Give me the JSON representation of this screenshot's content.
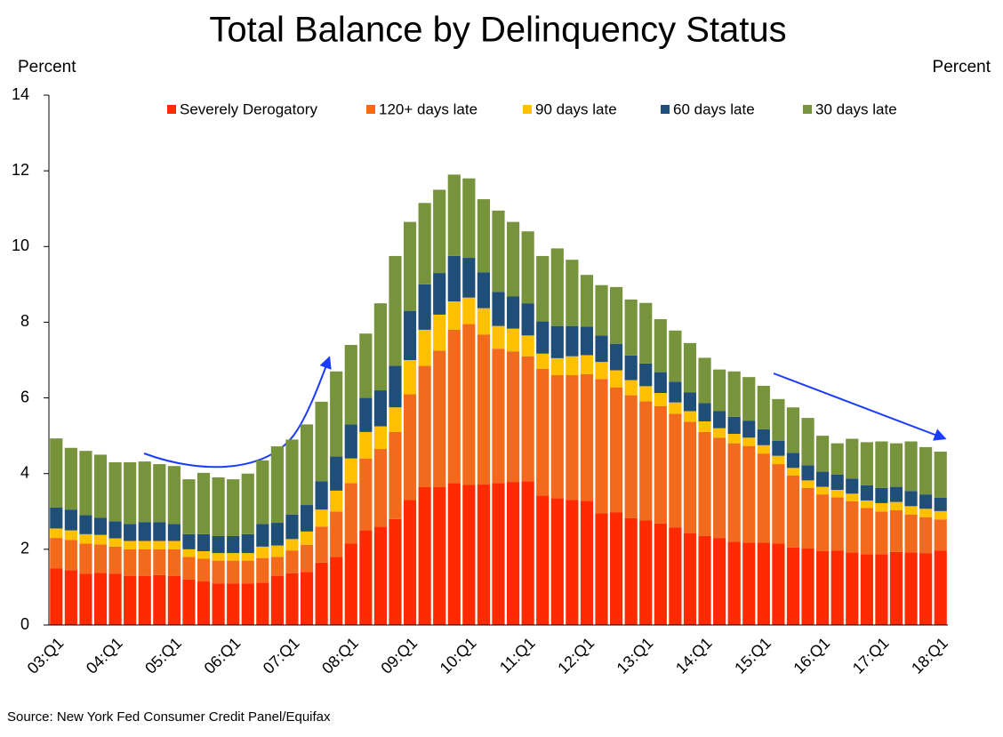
{
  "chart_data": {
    "type": "stacked_bar",
    "title": "Total Balance by Delinquency Status",
    "ylabel": "Percent",
    "ylabel_right": "Percent",
    "source": "Source: New York Fed Consumer Credit Panel/Equifax",
    "categories": [
      "03:Q1",
      null,
      null,
      null,
      "04:Q1",
      null,
      null,
      null,
      "05:Q1",
      null,
      null,
      null,
      "06:Q1",
      null,
      null,
      null,
      "07:Q1",
      null,
      null,
      null,
      "08:Q1",
      null,
      null,
      null,
      "09:Q1",
      null,
      null,
      null,
      "10:Q1",
      null,
      null,
      null,
      "11:Q1",
      null,
      null,
      null,
      "12:Q1",
      null,
      null,
      null,
      "13:Q1",
      null,
      null,
      null,
      "14:Q1",
      null,
      null,
      null,
      "15:Q1",
      null,
      null,
      null,
      "16:Q1",
      null,
      null,
      null,
      "17:Q1",
      null,
      null,
      null,
      "18:Q1"
    ],
    "series": [
      {
        "name": "Severely Derogatory",
        "color": "#ff2a00",
        "values": [
          1.5,
          1.45,
          1.35,
          1.38,
          1.35,
          1.3,
          1.3,
          1.32,
          1.3,
          1.2,
          1.15,
          1.1,
          1.1,
          1.1,
          1.12,
          1.3,
          1.37,
          1.4,
          1.65,
          1.8,
          2.15,
          2.5,
          2.6,
          2.8,
          3.3,
          3.65,
          3.65,
          3.75,
          3.7,
          3.72,
          3.75,
          3.78,
          3.8,
          3.42,
          3.35,
          3.3,
          3.28,
          2.95,
          2.98,
          2.82,
          2.76,
          2.68,
          2.58,
          2.42,
          2.35,
          2.3,
          2.2,
          2.18,
          2.18,
          2.15,
          2.05,
          2.02,
          1.95,
          1.97,
          1.92,
          1.87,
          1.87,
          1.93,
          1.92,
          1.9,
          1.97
        ]
      },
      {
        "name": "120+ days late",
        "color": "#f26b1d",
        "values": [
          0.8,
          0.8,
          0.8,
          0.75,
          0.72,
          0.7,
          0.7,
          0.68,
          0.7,
          0.6,
          0.6,
          0.6,
          0.6,
          0.6,
          0.65,
          0.5,
          0.6,
          0.72,
          0.95,
          1.2,
          1.6,
          1.9,
          2.05,
          2.3,
          2.8,
          3.2,
          3.6,
          4.05,
          4.25,
          3.95,
          3.55,
          3.45,
          3.3,
          3.35,
          3.25,
          3.3,
          3.35,
          3.55,
          3.3,
          3.25,
          3.15,
          3.1,
          3.0,
          2.95,
          2.75,
          2.65,
          2.6,
          2.55,
          2.35,
          2.1,
          1.9,
          1.6,
          1.5,
          1.4,
          1.35,
          1.22,
          1.13,
          1.1,
          1.0,
          0.95,
          0.82
        ]
      },
      {
        "name": "90 days late",
        "color": "#ffc000",
        "values": [
          0.25,
          0.25,
          0.25,
          0.25,
          0.22,
          0.22,
          0.22,
          0.22,
          0.22,
          0.2,
          0.2,
          0.2,
          0.2,
          0.2,
          0.3,
          0.3,
          0.3,
          0.35,
          0.45,
          0.55,
          0.65,
          0.7,
          0.6,
          0.65,
          0.9,
          0.95,
          0.95,
          0.75,
          0.7,
          0.7,
          0.6,
          0.6,
          0.55,
          0.4,
          0.45,
          0.5,
          0.5,
          0.45,
          0.45,
          0.4,
          0.4,
          0.35,
          0.3,
          0.28,
          0.28,
          0.25,
          0.25,
          0.22,
          0.22,
          0.22,
          0.2,
          0.2,
          0.2,
          0.2,
          0.2,
          0.2,
          0.22,
          0.22,
          0.22,
          0.22,
          0.22
        ]
      },
      {
        "name": "60 days late",
        "color": "#1f4e79",
        "values": [
          0.55,
          0.55,
          0.5,
          0.45,
          0.45,
          0.45,
          0.5,
          0.5,
          0.45,
          0.4,
          0.45,
          0.45,
          0.45,
          0.5,
          0.6,
          0.6,
          0.65,
          0.7,
          0.75,
          0.9,
          0.9,
          0.9,
          0.95,
          1.1,
          1.3,
          1.2,
          1.1,
          1.2,
          1.05,
          0.95,
          0.9,
          0.85,
          0.85,
          0.85,
          0.85,
          0.8,
          0.75,
          0.7,
          0.7,
          0.65,
          0.6,
          0.55,
          0.55,
          0.5,
          0.48,
          0.45,
          0.45,
          0.45,
          0.42,
          0.4,
          0.4,
          0.4,
          0.4,
          0.4,
          0.4,
          0.4,
          0.4,
          0.4,
          0.4,
          0.38,
          0.35
        ]
      },
      {
        "name": "30 days late",
        "color": "#77933c",
        "values": [
          1.83,
          1.63,
          1.7,
          1.67,
          1.56,
          1.63,
          1.6,
          1.53,
          1.53,
          1.45,
          1.62,
          1.55,
          1.5,
          1.6,
          1.68,
          2.02,
          1.98,
          2.13,
          2.1,
          2.25,
          2.1,
          1.7,
          2.3,
          2.9,
          2.35,
          2.15,
          2.2,
          2.15,
          2.1,
          1.93,
          2.15,
          1.97,
          1.9,
          1.73,
          2.05,
          1.75,
          1.37,
          1.33,
          1.5,
          1.48,
          1.6,
          1.4,
          1.35,
          1.3,
          1.2,
          1.1,
          1.2,
          1.15,
          1.15,
          1.1,
          1.2,
          1.25,
          0.95,
          0.83,
          1.05,
          1.14,
          1.23,
          1.15,
          1.31,
          1.25,
          1.22
        ]
      }
    ],
    "ylim": [
      0,
      14
    ],
    "yticks": [
      0,
      2,
      4,
      6,
      8,
      10,
      12,
      14
    ],
    "legend": "top"
  }
}
